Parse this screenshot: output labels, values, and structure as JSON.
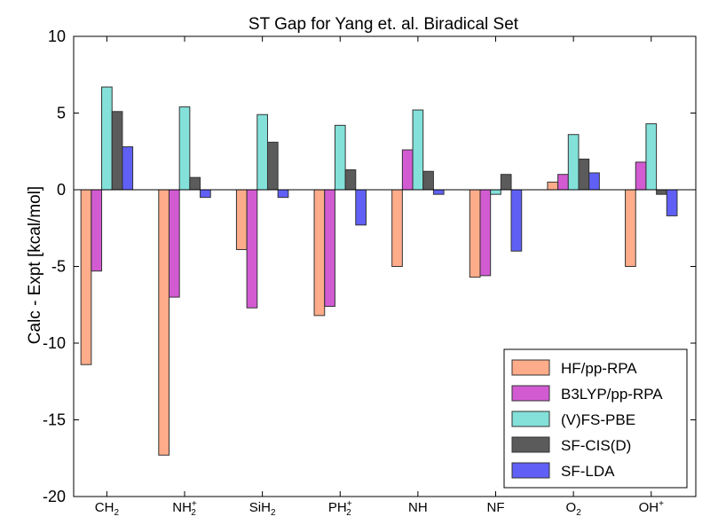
{
  "chart_data": {
    "type": "bar",
    "title": "ST Gap for Yang et. al. Biradical Set",
    "xlabel": "",
    "ylabel": "Calc - Expt [kcal/mol]",
    "ylim": [
      -20,
      10
    ],
    "yticks": [
      10,
      5,
      0,
      -5,
      -10,
      -15,
      -20
    ],
    "ytick_labels": [
      "10",
      "5",
      "0",
      "-5",
      "-10",
      "-15",
      "-20"
    ],
    "categories": [
      {
        "base": "CH",
        "sub": "2",
        "sup": ""
      },
      {
        "base": "NH",
        "sub": "2",
        "sup": "+"
      },
      {
        "base": "SiH",
        "sub": "2",
        "sup": ""
      },
      {
        "base": "PH",
        "sub": "2",
        "sup": "+"
      },
      {
        "base": "NH",
        "sub": "",
        "sup": ""
      },
      {
        "base": "NF",
        "sub": "",
        "sup": ""
      },
      {
        "base": "O",
        "sub": "2",
        "sup": ""
      },
      {
        "base": "OH",
        "sub": "",
        "sup": "+"
      }
    ],
    "legend_position": "lower-right",
    "series": [
      {
        "name": "HF/pp-RPA",
        "color": "#ffa07a",
        "values": [
          -11.4,
          -17.3,
          -3.9,
          -8.2,
          -5.0,
          -5.7,
          0.5,
          -5.0
        ]
      },
      {
        "name": "B3LYP/pp-RPA",
        "color": "#cc44cc",
        "values": [
          -5.3,
          -7.0,
          -7.7,
          -7.6,
          2.6,
          -5.6,
          1.0,
          1.8
        ]
      },
      {
        "name": "(V)FS-PBE",
        "color": "#72ddd5",
        "values": [
          6.7,
          5.4,
          4.9,
          4.2,
          5.2,
          -0.3,
          3.6,
          4.3
        ]
      },
      {
        "name": "SF-CIS(D)",
        "color": "#444444",
        "values": [
          5.1,
          0.8,
          3.1,
          1.3,
          1.2,
          1.0,
          2.0,
          -0.3
        ]
      },
      {
        "name": "SF-LDA",
        "color": "#4a4af5",
        "values": [
          2.8,
          -0.5,
          -0.5,
          -2.3,
          -0.3,
          -4.0,
          1.1,
          -1.7
        ]
      }
    ]
  }
}
